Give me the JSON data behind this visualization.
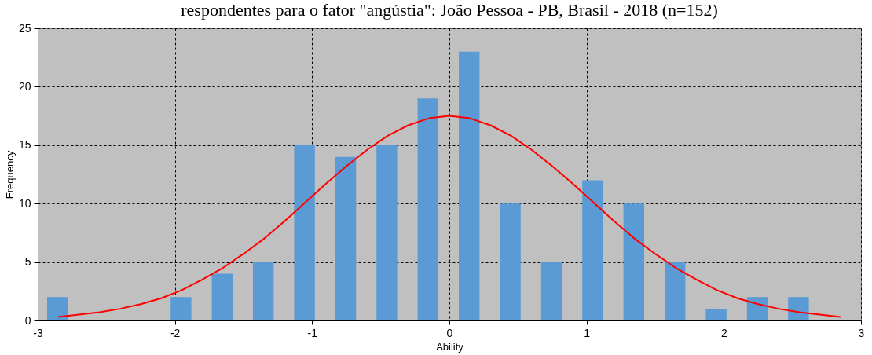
{
  "chart_data": {
    "type": "histogram",
    "title": "respondentes para o fator \"angústia\": João Pessoa - PB, Brasil - 2018 (n=152)",
    "xlabel": "Ability",
    "ylabel": "Frequency",
    "bins": [
      -3,
      -2.7,
      -2.4,
      -2.1,
      -1.8,
      -1.5,
      -1.2,
      -0.9,
      -0.6,
      -0.3,
      0,
      0.3,
      0.6,
      0.9,
      1.2,
      1.5,
      1.8,
      2.1,
      2.4,
      2.7,
      3
    ],
    "values": [
      2,
      0,
      0,
      2,
      4,
      5,
      15,
      14,
      15,
      19,
      23,
      10,
      5,
      12,
      10,
      5,
      1,
      2,
      2,
      0
    ],
    "color": "#5b9bd5",
    "series": [
      {
        "type": "line",
        "color": "#ff0000",
        "x": [
          -2.85,
          -2.7,
          -2.55,
          -2.4,
          -2.25,
          -2.1,
          -1.95,
          -1.8,
          -1.65,
          -1.5,
          -1.35,
          -1.2,
          -1.05,
          -0.9,
          -0.75,
          -0.6,
          -0.45,
          -0.3,
          -0.15,
          0,
          0.15,
          0.3,
          0.45,
          0.6,
          0.75,
          0.9,
          1.05,
          1.2,
          1.35,
          1.5,
          1.65,
          1.8,
          1.95,
          2.1,
          2.25,
          2.4,
          2.55,
          2.7,
          2.85
        ],
        "values": [
          0.3,
          0.5,
          0.7,
          1.0,
          1.4,
          1.9,
          2.6,
          3.5,
          4.5,
          5.7,
          7.0,
          8.5,
          10.1,
          11.7,
          13.2,
          14.6,
          15.8,
          16.7,
          17.3,
          17.5,
          17.3,
          16.7,
          15.8,
          14.6,
          13.2,
          11.7,
          10.1,
          8.5,
          7.0,
          5.7,
          4.5,
          3.5,
          2.6,
          1.9,
          1.4,
          1.0,
          0.7,
          0.5,
          0.3
        ]
      }
    ],
    "xlim": [
      -3,
      3
    ],
    "xticks": [
      -3,
      -2,
      -1,
      0,
      1,
      2,
      3
    ],
    "ylim": [
      0,
      25
    ],
    "yticks": [
      0,
      5,
      10,
      15,
      20,
      25
    ],
    "grid": true
  }
}
